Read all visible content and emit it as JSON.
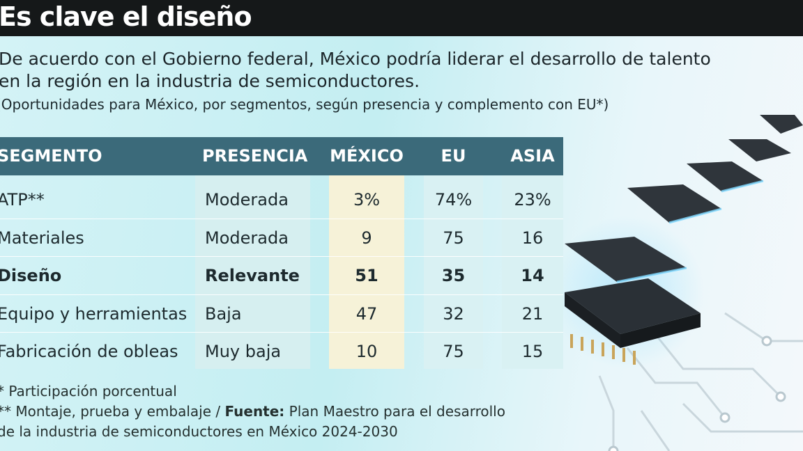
{
  "header": {
    "title": "Es clave el diseño"
  },
  "intro": {
    "lines": [
      "De acuerdo con el Gobierno federal, México podría liderar el desarrollo de talento",
      "en la región en la industria de semiconductores."
    ],
    "subtitle": "(Oportunidades para México, por segmentos, según presencia y complemento con EU*)"
  },
  "table": {
    "columns": [
      "SEGMENTO",
      "PRESENCIA",
      "MÉXICO",
      "EU",
      "ASIA"
    ],
    "rows": [
      [
        "ATP**",
        "Moderada",
        "3%",
        "74%",
        "23%"
      ],
      [
        "Materiales",
        "Moderada",
        "9",
        "75",
        "16"
      ],
      [
        "Diseño",
        "Relevante",
        "51",
        "35",
        "14"
      ],
      [
        "Equipo y herramientas",
        "Baja",
        "47",
        "32",
        "21"
      ],
      [
        "Fabricación de obleas",
        "Muy baja",
        "10",
        "75",
        "15"
      ]
    ]
  },
  "footnotes": {
    "note": "* Participación porcentual",
    "source_note": "** Montaje, prueba y embalaje /",
    "source_label": "Fuente:",
    "source_lines": [
      "Plan Maestro para el desarrollo",
      "de la industria de semiconductores en México 2024-2030"
    ]
  }
}
